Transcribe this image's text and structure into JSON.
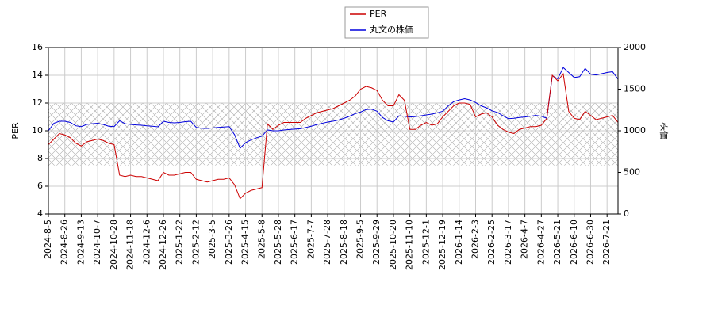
{
  "chart_data": {
    "type": "line",
    "categories": [
      "2024-8-5",
      null,
      null,
      "2024-8-26",
      null,
      null,
      "2024-9-13",
      null,
      null,
      "2024-10-7",
      null,
      null,
      "2024-10-28",
      null,
      null,
      "2024-11-18",
      null,
      null,
      "2024-12-6",
      null,
      null,
      "2024-12-26",
      null,
      null,
      "2025-1-22",
      null,
      null,
      "2025-2-12",
      null,
      null,
      "2025-3-5",
      null,
      null,
      "2025-3-26",
      null,
      null,
      "2025-4-15",
      null,
      null,
      "2025-5-8",
      null,
      null,
      "2025-5-28",
      null,
      null,
      "2025-6-17",
      null,
      null,
      "2025-7-7",
      null,
      null,
      "2025-7-28",
      null,
      null,
      "2025-8-18",
      null,
      null,
      "2025-9-5",
      null,
      null,
      "2025-9-29",
      null,
      null,
      "2025-10-20",
      null,
      null,
      "2025-11-10",
      null,
      null,
      "2025-12-1",
      null,
      null,
      "2025-12-19",
      null,
      null,
      "2026-1-14",
      null,
      null,
      "2026-2-3",
      null,
      null,
      "2026-2-25",
      null,
      null,
      "2026-3-17",
      null,
      null,
      "2026-4-7",
      null,
      null,
      "2026-4-27",
      null,
      null,
      "2026-5-21",
      null,
      null,
      "2026-6-10",
      null,
      null,
      "2026-6-30",
      null,
      null,
      "2026-7-21",
      null,
      null
    ],
    "series": [
      {
        "name": "PER",
        "color": "#cc0000",
        "values": [
          9.0,
          9.4,
          9.8,
          9.7,
          9.5,
          9.1,
          8.9,
          9.2,
          9.3,
          9.4,
          9.3,
          9.1,
          9.0,
          6.8,
          6.7,
          6.8,
          6.7,
          6.7,
          6.6,
          6.5,
          6.4,
          7.0,
          6.8,
          6.8,
          6.9,
          7.0,
          7.0,
          6.5,
          6.4,
          6.3,
          6.4,
          6.5,
          6.5,
          6.6,
          6.1,
          5.1,
          5.5,
          5.7,
          5.8,
          5.9,
          10.5,
          10.1,
          10.4,
          10.6,
          10.6,
          10.6,
          10.6,
          10.9,
          11.1,
          11.3,
          11.4,
          11.5,
          11.6,
          11.8,
          12.0,
          12.2,
          12.5,
          13.0,
          13.2,
          13.1,
          12.9,
          12.2,
          11.8,
          11.8,
          12.6,
          12.2,
          10.1,
          10.1,
          10.4,
          10.6,
          10.4,
          10.5,
          11.0,
          11.4,
          11.8,
          12.0,
          12.0,
          11.9,
          11.0,
          11.2,
          11.3,
          11.0,
          10.4,
          10.1,
          9.9,
          9.8,
          10.1,
          10.2,
          10.3,
          10.3,
          10.4,
          10.9,
          14.0,
          13.6,
          14.1,
          11.4,
          10.9,
          10.8,
          11.4,
          11.1,
          10.8,
          10.9,
          11.0,
          11.1,
          10.6
        ]
      },
      {
        "name": "丸文の株価",
        "color": "#0000dd",
        "axis": "y2",
        "values": [
          1000,
          1090,
          1114,
          1114,
          1100,
          1060,
          1050,
          1076,
          1085,
          1090,
          1076,
          1055,
          1050,
          1120,
          1085,
          1076,
          1070,
          1067,
          1060,
          1055,
          1048,
          1114,
          1100,
          1095,
          1100,
          1110,
          1114,
          1040,
          1030,
          1029,
          1035,
          1040,
          1045,
          1050,
          952,
          790,
          857,
          890,
          915,
          935,
          1010,
          1000,
          1000,
          1010,
          1015,
          1020,
          1025,
          1040,
          1055,
          1075,
          1090,
          1105,
          1115,
          1130,
          1150,
          1175,
          1205,
          1225,
          1255,
          1260,
          1235,
          1160,
          1120,
          1105,
          1180,
          1175,
          1165,
          1170,
          1180,
          1190,
          1200,
          1215,
          1235,
          1300,
          1350,
          1370,
          1385,
          1370,
          1340,
          1300,
          1275,
          1240,
          1220,
          1180,
          1145,
          1150,
          1160,
          1165,
          1175,
          1185,
          1175,
          1150,
          1660,
          1625,
          1760,
          1700,
          1640,
          1650,
          1750,
          1680,
          1670,
          1686,
          1700,
          1710,
          1620
        ]
      }
    ],
    "ylabel": "PER",
    "y2label": "株価",
    "ylim": [
      4,
      16
    ],
    "yticks": [
      4,
      6,
      8,
      10,
      12,
      14,
      16
    ],
    "y2lim": [
      0,
      2000
    ],
    "y2ticks": [
      0,
      500,
      1000,
      1500,
      2000
    ],
    "band": [
      7.5,
      12
    ],
    "grid": true,
    "legend": "top"
  }
}
